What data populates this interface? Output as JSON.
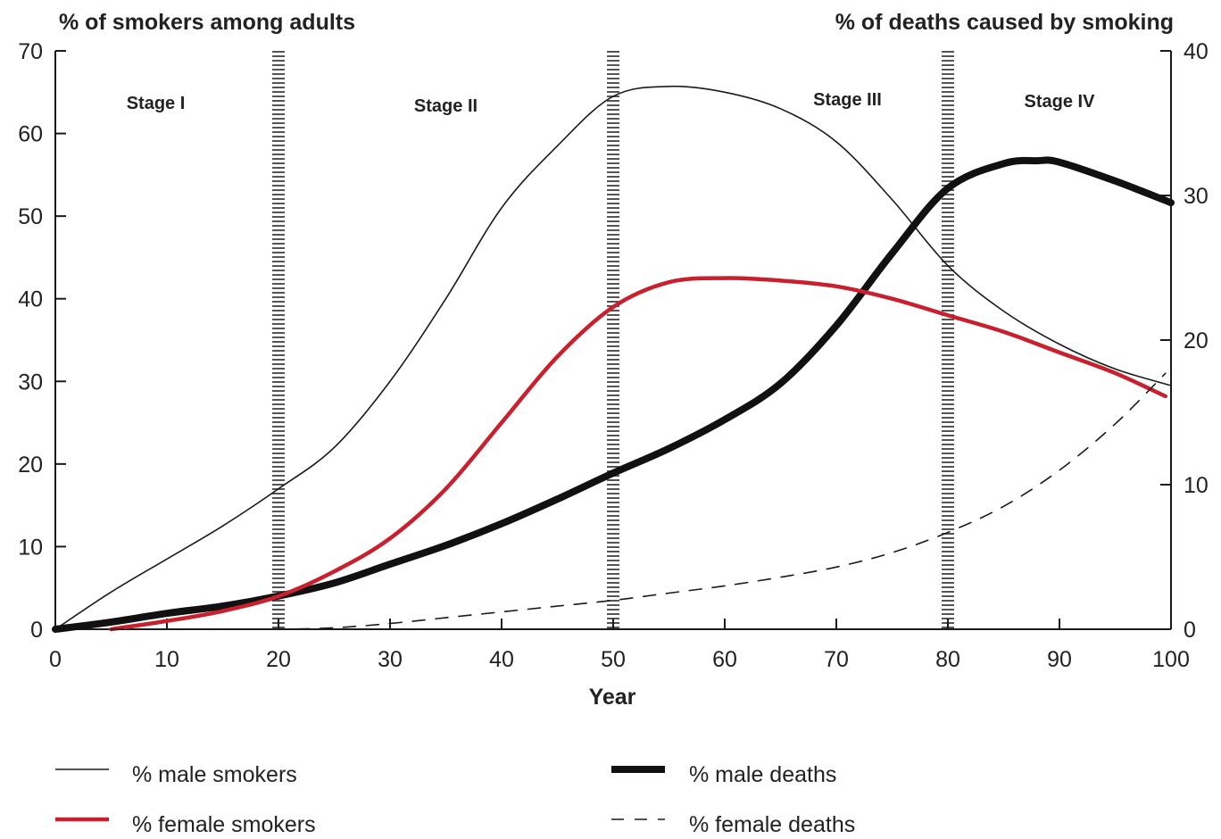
{
  "chart_data": {
    "type": "line",
    "left_axis_title": "% of smokers among adults",
    "right_axis_title": "% of deaths caused by smoking",
    "xlabel": "Year",
    "xlim": [
      0,
      100
    ],
    "ylim_left": [
      0,
      70
    ],
    "ylim_right": [
      0,
      40
    ],
    "x_ticks": [
      "0",
      "10",
      "20",
      "30",
      "40",
      "50",
      "60",
      "70",
      "80",
      "90",
      "100"
    ],
    "y_ticks_left": [
      "0",
      "10",
      "20",
      "30",
      "40",
      "50",
      "60",
      "70"
    ],
    "y_ticks_right": [
      "0",
      "10",
      "20",
      "30",
      "40"
    ],
    "stage_boundaries": [
      20,
      50,
      80
    ],
    "stages": [
      {
        "label": "Stage I",
        "x": 9
      },
      {
        "label": "Stage II",
        "x": 35
      },
      {
        "label": "Stage III",
        "x": 71
      },
      {
        "label": "Stage IV",
        "x": 90
      }
    ],
    "series": [
      {
        "name": "% male smokers",
        "axis": "left",
        "color": "#1a1a1a",
        "style": "thin",
        "points": [
          [
            0,
            0
          ],
          [
            5,
            4.5
          ],
          [
            10,
            8.5
          ],
          [
            15,
            12.5
          ],
          [
            20,
            17
          ],
          [
            25,
            22
          ],
          [
            30,
            30
          ],
          [
            35,
            40
          ],
          [
            40,
            51
          ],
          [
            45,
            58.5
          ],
          [
            50,
            64.5
          ],
          [
            55,
            65.7
          ],
          [
            60,
            65
          ],
          [
            65,
            63
          ],
          [
            70,
            59
          ],
          [
            75,
            52
          ],
          [
            80,
            44
          ],
          [
            85,
            38.5
          ],
          [
            90,
            34.5
          ],
          [
            95,
            31.5
          ],
          [
            100,
            29.5
          ]
        ]
      },
      {
        "name": "% female smokers",
        "axis": "left",
        "color": "#c8202c",
        "style": "medium",
        "points": [
          [
            5,
            0
          ],
          [
            10,
            1
          ],
          [
            15,
            2.2
          ],
          [
            20,
            4
          ],
          [
            25,
            7
          ],
          [
            30,
            11
          ],
          [
            35,
            17
          ],
          [
            40,
            25
          ],
          [
            45,
            33
          ],
          [
            50,
            39
          ],
          [
            55,
            42
          ],
          [
            60,
            42.5
          ],
          [
            65,
            42.2
          ],
          [
            70,
            41.5
          ],
          [
            75,
            40
          ],
          [
            80,
            38
          ],
          [
            85,
            36
          ],
          [
            90,
            33.5
          ],
          [
            95,
            31
          ],
          [
            99.5,
            28.2
          ]
        ]
      },
      {
        "name": "% male deaths",
        "axis": "right",
        "color": "#111111",
        "style": "thick",
        "points": [
          [
            0,
            0
          ],
          [
            5,
            0.5
          ],
          [
            10,
            1.1
          ],
          [
            15,
            1.6
          ],
          [
            20,
            2.3
          ],
          [
            25,
            3.2
          ],
          [
            30,
            4.5
          ],
          [
            35,
            5.8
          ],
          [
            40,
            7.3
          ],
          [
            45,
            9
          ],
          [
            50,
            10.8
          ],
          [
            55,
            12.5
          ],
          [
            60,
            14.5
          ],
          [
            65,
            17
          ],
          [
            70,
            21
          ],
          [
            75,
            26
          ],
          [
            80,
            30.5
          ],
          [
            85,
            32.2
          ],
          [
            88,
            32.4
          ],
          [
            90,
            32.3
          ],
          [
            95,
            31
          ],
          [
            100,
            29.5
          ]
        ]
      },
      {
        "name": "% female deaths",
        "axis": "right",
        "color": "#1a1a1a",
        "style": "dashed",
        "points": [
          [
            5,
            0
          ],
          [
            10,
            0
          ],
          [
            15,
            0
          ],
          [
            20,
            0
          ],
          [
            25,
            0.1
          ],
          [
            30,
            0.4
          ],
          [
            35,
            0.8
          ],
          [
            40,
            1.2
          ],
          [
            45,
            1.6
          ],
          [
            50,
            2
          ],
          [
            55,
            2.5
          ],
          [
            60,
            3
          ],
          [
            65,
            3.6
          ],
          [
            70,
            4.3
          ],
          [
            75,
            5.3
          ],
          [
            80,
            6.7
          ],
          [
            85,
            8.5
          ],
          [
            90,
            11
          ],
          [
            95,
            14.2
          ],
          [
            99.5,
            17.7
          ]
        ]
      }
    ],
    "legend_placement": "bottom"
  }
}
